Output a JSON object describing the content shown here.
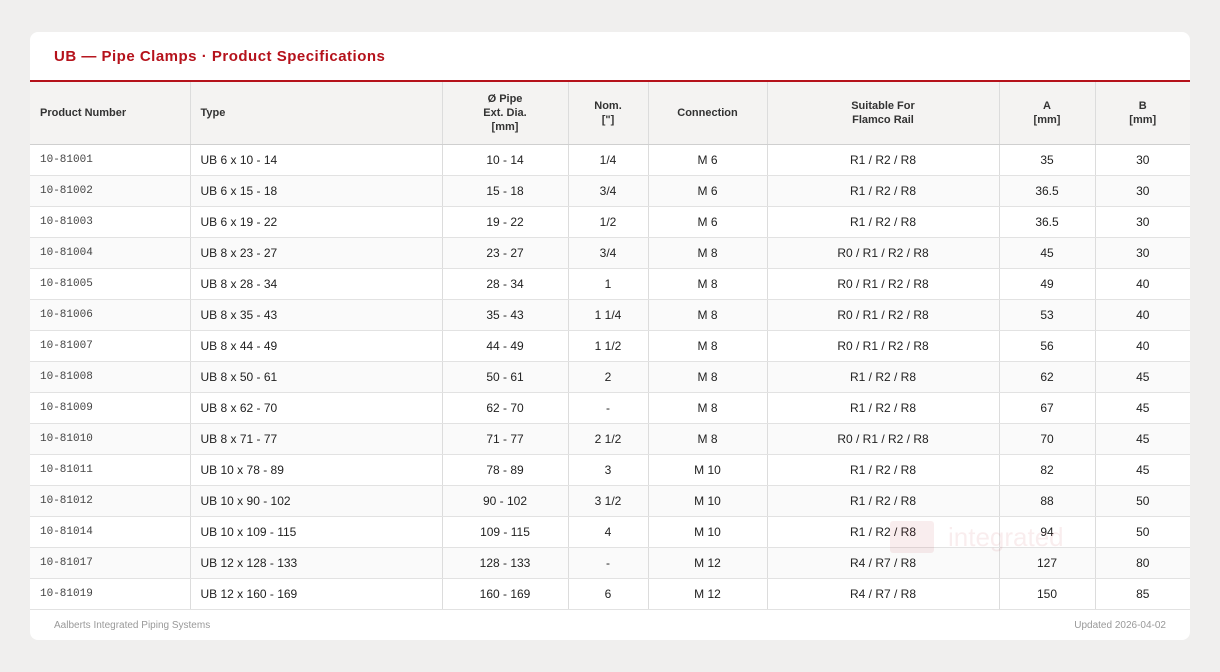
{
  "title": "UB — Pipe Clamps · Product Specifications",
  "columns": [
    {
      "lines": [
        "Product Number"
      ]
    },
    {
      "lines": [
        "Type"
      ]
    },
    {
      "lines": [
        "Ø Pipe",
        "Ext. Dia.",
        "[mm]"
      ]
    },
    {
      "lines": [
        "Nom.",
        "[\"]"
      ]
    },
    {
      "lines": [
        "Connection"
      ]
    },
    {
      "lines": [
        "Suitable For",
        "Flamco Rail"
      ]
    },
    {
      "lines": [
        "A",
        "[mm]"
      ]
    },
    {
      "lines": [
        "B",
        "[mm]"
      ]
    }
  ],
  "rows": [
    [
      "10-81001",
      "UB 6 x 10 - 14",
      "10 - 14",
      "1/4",
      "M 6",
      "R1 / R2 / R8",
      "35",
      "30"
    ],
    [
      "10-81002",
      "UB 6 x 15 - 18",
      "15 - 18",
      "3/4",
      "M 6",
      "R1 / R2 / R8",
      "36.5",
      "30"
    ],
    [
      "10-81003",
      "UB 6 x 19 - 22",
      "19 - 22",
      "1/2",
      "M 6",
      "R1 / R2 / R8",
      "36.5",
      "30"
    ],
    [
      "10-81004",
      "UB 8 x 23 - 27",
      "23 - 27",
      "3/4",
      "M 8",
      "R0 / R1 / R2 / R8",
      "45",
      "30"
    ],
    [
      "10-81005",
      "UB 8 x 28 - 34",
      "28 - 34",
      "1",
      "M 8",
      "R0 / R1 / R2 / R8",
      "49",
      "40"
    ],
    [
      "10-81006",
      "UB 8 x 35 - 43",
      "35 - 43",
      "1 1/4",
      "M 8",
      "R0 / R1 / R2 / R8",
      "53",
      "40"
    ],
    [
      "10-81007",
      "UB 8 x 44 - 49",
      "44 - 49",
      "1 1/2",
      "M 8",
      "R0 / R1 / R2 / R8",
      "56",
      "40"
    ],
    [
      "10-81008",
      "UB 8 x 50 - 61",
      "50 - 61",
      "2",
      "M 8",
      "R1 / R2 / R8",
      "62",
      "45"
    ],
    [
      "10-81009",
      "UB 8 x 62 - 70",
      "62 - 70",
      "-",
      "M 8",
      "R1 / R2 / R8",
      "67",
      "45"
    ],
    [
      "10-81010",
      "UB 8 x 71 - 77",
      "71 - 77",
      "2 1/2",
      "M 8",
      "R0 / R1 / R2 / R8",
      "70",
      "45"
    ],
    [
      "10-81011",
      "UB 10 x 78 - 89",
      "78 - 89",
      "3",
      "M 10",
      "R1 / R2 / R8",
      "82",
      "45"
    ],
    [
      "10-81012",
      "UB 10 x 90 - 102",
      "90 - 102",
      "3 1/2",
      "M 10",
      "R1 / R2 / R8",
      "88",
      "50"
    ],
    [
      "10-81014",
      "UB 10 x 109 - 115",
      "109 - 115",
      "4",
      "M 10",
      "R1 / R2 / R8",
      "94",
      "50"
    ],
    [
      "10-81017",
      "UB 12 x 128 - 133",
      "128 - 133",
      "-",
      "M 12",
      "R4 / R7 / R8",
      "127",
      "80"
    ],
    [
      "10-81019",
      "UB 12 x 160 - 169",
      "160 - 169",
      "6",
      "M 12",
      "R4 / R7 / R8",
      "150",
      "85"
    ]
  ],
  "watermark": "integrated",
  "footer": {
    "left": "Aalberts Integrated Piping Systems",
    "right": "Updated 2026-04-02"
  },
  "colors": {
    "accent": "#b5121b"
  }
}
